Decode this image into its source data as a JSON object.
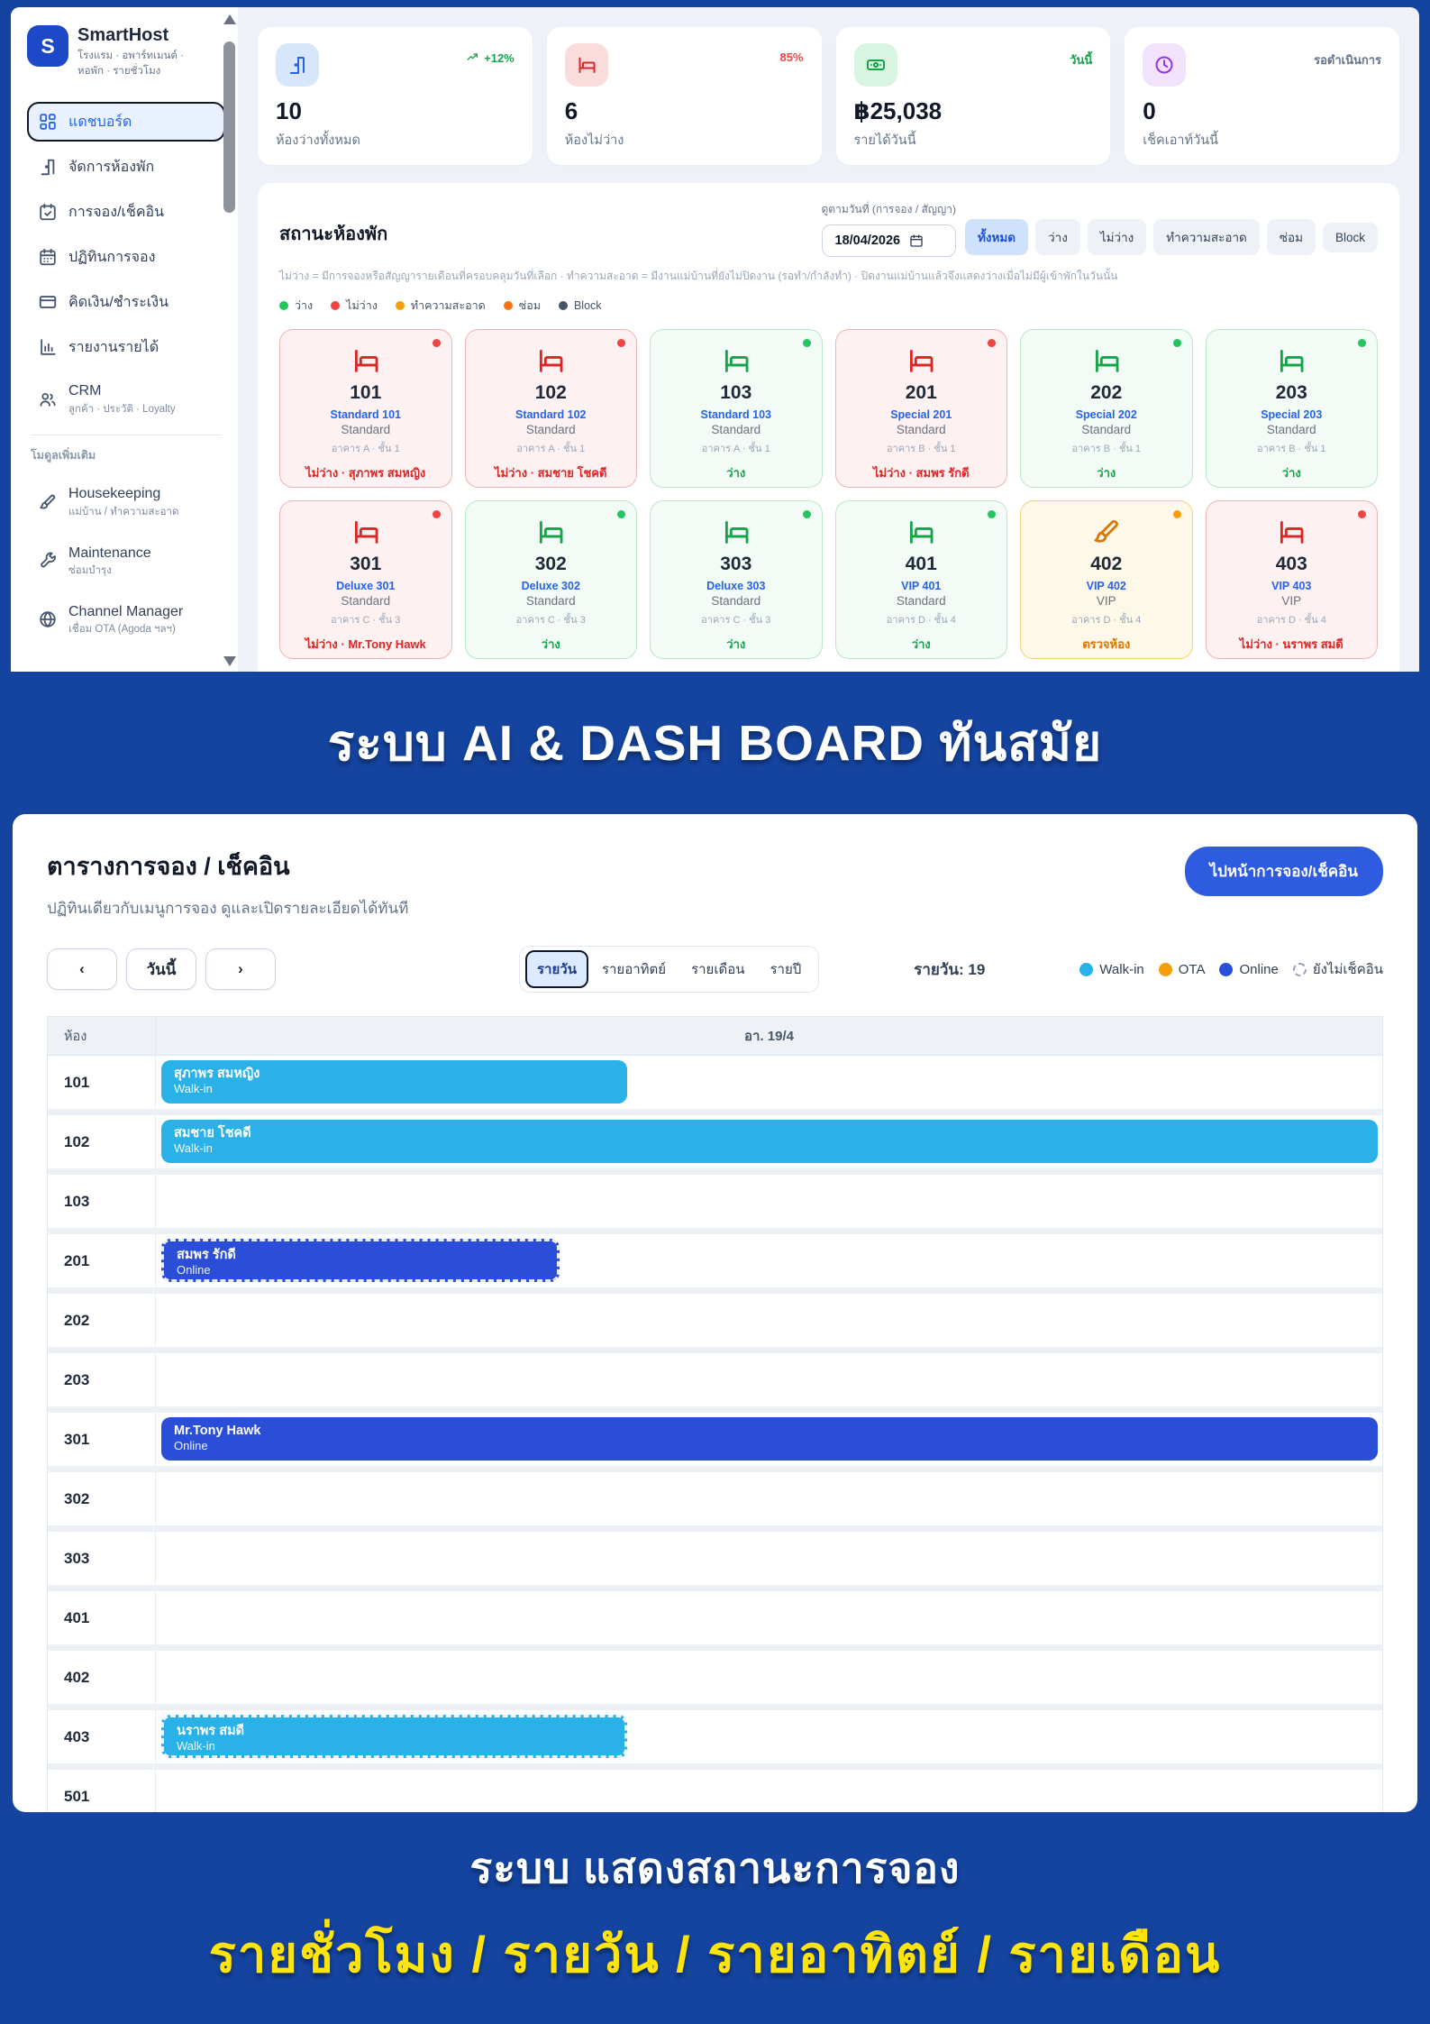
{
  "app": {
    "name": "SmartHost",
    "tagline": "โรงแรม · อพาร์ทเมนต์ · หอพัก · รายชั่วโมง",
    "logo_letter": "S"
  },
  "colors": {
    "frame_blue": "#14449F",
    "accent_blue": "#2563eb",
    "walkin": "#29b1e8",
    "ota": "#f59e0b",
    "online": "#2b4ed9",
    "free_green": "#22c55e",
    "occupied_red": "#ef4444",
    "cleaning_orange": "#f59e0b",
    "repair_orange": "#f97316",
    "block_slate": "#475569"
  },
  "sidebar": {
    "items": [
      {
        "label": "แดชบอร์ด",
        "icon": "dashboard",
        "active": true
      },
      {
        "label": "จัดการห้องพัก",
        "icon": "door"
      },
      {
        "label": "การจอง/เช็คอิน",
        "icon": "calendar-check"
      },
      {
        "label": "ปฏิทินการจอง",
        "icon": "calendar"
      },
      {
        "label": "คิดเงิน/ชำระเงิน",
        "icon": "credit-card"
      },
      {
        "label": "รายงานรายได้",
        "icon": "bar-chart"
      },
      {
        "label": "CRM",
        "sub": "ลูกค้า · ประวัติ · Loyalty",
        "icon": "users"
      }
    ],
    "section_label": "โมดูลเพิ่มเติม",
    "extra_items": [
      {
        "label": "Housekeeping",
        "sub": "แม่บ้าน / ทำความสะอาด",
        "icon": "brush"
      },
      {
        "label": "Maintenance",
        "sub": "ซ่อมบำรุง",
        "icon": "wrench"
      },
      {
        "label": "Channel Manager",
        "sub": "เชื่อม OTA (Agoda ฯลฯ)",
        "icon": "globe"
      }
    ]
  },
  "stats": [
    {
      "icon": "door",
      "icon_color": "#2563eb",
      "icon_bg": "#d8e6fb",
      "badge": "+12%",
      "badge_icon": "trend-up",
      "badge_color": "#16a34a",
      "value": "10",
      "label": "ห้องว่างทั้งหมด"
    },
    {
      "icon": "bed",
      "icon_color": "#dc2626",
      "icon_bg": "#fbdcdc",
      "badge": "85%",
      "badge_color": "#ef4444",
      "value": "6",
      "label": "ห้องไม่ว่าง"
    },
    {
      "icon": "banknote",
      "icon_color": "#16a34a",
      "icon_bg": "#d7f5e2",
      "badge": "วันนี้",
      "badge_color": "#16a34a",
      "value": "฿25,038",
      "label": "รายได้วันนี้"
    },
    {
      "icon": "clock",
      "icon_color": "#9333ea",
      "icon_bg": "#f1e3fc",
      "badge": "รอดำเนินการ",
      "badge_color": "#64748b",
      "value": "0",
      "label": "เช็คเอาท์วันนี้"
    }
  ],
  "room_status": {
    "title": "สถานะห้องพัก",
    "date_label": "ดูตามวันที่ (การจอง / สัญญา)",
    "date_value": "18/04/2026",
    "filters": [
      "ทั้งหมด",
      "ว่าง",
      "ไม่ว่าง",
      "ทำความสะอาด",
      "ซ่อม",
      "Block"
    ],
    "active_filter": "ทั้งหมด",
    "hint": "ไม่ว่าง = มีการจองหรือสัญญารายเดือนที่ครอบคลุมวันที่เลือก · ทำความสะอาด = มีงานแม่บ้านที่ยังไม่ปิดงาน (รอทำ/กำลังทำ) · ปิดงานแม่บ้านแล้วจึงแสดงว่างเมื่อไม่มีผู้เข้าพักในวันนั้น",
    "legend": [
      {
        "label": "ว่าง",
        "color": "#22c55e"
      },
      {
        "label": "ไม่ว่าง",
        "color": "#ef4444"
      },
      {
        "label": "ทำความสะอาด",
        "color": "#f59e0b"
      },
      {
        "label": "ซ่อม",
        "color": "#f97316"
      },
      {
        "label": "Block",
        "color": "#475569"
      }
    ],
    "rooms": [
      {
        "number": "101",
        "name": "Standard 101",
        "type": "Standard",
        "location": "อาคาร A · ชั้น 1",
        "status": "ไม่ว่าง · สุภาพร สมหญิง",
        "state": "occupied"
      },
      {
        "number": "102",
        "name": "Standard 102",
        "type": "Standard",
        "location": "อาคาร A · ชั้น 1",
        "status": "ไม่ว่าง · สมชาย โชคดี",
        "state": "occupied"
      },
      {
        "number": "103",
        "name": "Standard 103",
        "type": "Standard",
        "location": "อาคาร A · ชั้น 1",
        "status": "ว่าง",
        "state": "free"
      },
      {
        "number": "201",
        "name": "Special 201",
        "type": "Standard",
        "location": "อาคาร B · ชั้น 1",
        "status": "ไม่ว่าง · สมพร รักดี",
        "state": "occupied"
      },
      {
        "number": "202",
        "name": "Special 202",
        "type": "Standard",
        "location": "อาคาร B · ชั้น 1",
        "status": "ว่าง",
        "state": "free"
      },
      {
        "number": "203",
        "name": "Special 203",
        "type": "Standard",
        "location": "อาคาร B · ชั้น 1",
        "status": "ว่าง",
        "state": "free"
      },
      {
        "number": "301",
        "name": "Deluxe 301",
        "type": "Standard",
        "location": "อาคาร C · ชั้น 3",
        "status": "ไม่ว่าง · Mr.Tony Hawk",
        "state": "occupied"
      },
      {
        "number": "302",
        "name": "Deluxe 302",
        "type": "Standard",
        "location": "อาคาร C · ชั้น 3",
        "status": "ว่าง",
        "state": "free"
      },
      {
        "number": "303",
        "name": "Deluxe 303",
        "type": "Standard",
        "location": "อาคาร C · ชั้น 3",
        "status": "ว่าง",
        "state": "free"
      },
      {
        "number": "401",
        "name": "VIP 401",
        "type": "Standard",
        "location": "อาคาร D · ชั้น 4",
        "status": "ว่าง",
        "state": "free"
      },
      {
        "number": "402",
        "name": "VIP 402",
        "type": "VIP",
        "location": "อาคาร D · ชั้น 4",
        "status": "ตรวจห้อง",
        "state": "cleaning"
      },
      {
        "number": "403",
        "name": "VIP 403",
        "type": "VIP",
        "location": "อาคาร D · ชั้น 4",
        "status": "ไม่ว่าง · นราพร สมดี",
        "state": "occupied"
      }
    ]
  },
  "banner_top": {
    "text": "ระบบ AI & DASH BOARD ทันสมัย"
  },
  "booking": {
    "title": "ตารางการจอง / เช็คอิน",
    "subtitle": "ปฏิทินเดียวกับเมนูการจอง ดูและเปิดรายละเอียดได้ทันที",
    "goto_button": "ไปหน้าการจอง/เช็คอิน",
    "prev_label": "‹",
    "today_label": "วันนี้",
    "next_label": "›",
    "tabs": [
      "รายวัน",
      "รายอาทิตย์",
      "รายเดือน",
      "รายปี"
    ],
    "active_tab": "รายวัน",
    "count_label": "รายวัน: 19",
    "legend": [
      {
        "label": "Walk-in",
        "color": "#29b1e8"
      },
      {
        "label": "OTA",
        "color": "#f59e0b"
      },
      {
        "label": "Online",
        "color": "#2b4ed9"
      },
      {
        "label": "ยังไม่เช็คอิน",
        "dashed": true
      }
    ],
    "table": {
      "room_header": "ห้อง",
      "date_header": "อา. 19/4",
      "rows": [
        {
          "room": "101",
          "booking": {
            "guest": "สุภาพร สมหญิง",
            "channel": "Walk-in",
            "type": "walkin",
            "width_pct": 38,
            "dashed": false
          }
        },
        {
          "room": "102",
          "booking": {
            "guest": "สมชาย โชคดี",
            "channel": "Walk-in",
            "type": "walkin",
            "width_pct": 99.2,
            "dashed": false
          }
        },
        {
          "room": "103"
        },
        {
          "room": "201",
          "booking": {
            "guest": "สมพร รักดี",
            "channel": "Online",
            "type": "online",
            "width_pct": 32.5,
            "dashed": true
          }
        },
        {
          "room": "202"
        },
        {
          "room": "203"
        },
        {
          "room": "301",
          "booking": {
            "guest": "Mr.Tony Hawk",
            "channel": "Online",
            "type": "online",
            "width_pct": 99.2,
            "dashed": false
          }
        },
        {
          "room": "302"
        },
        {
          "room": "303"
        },
        {
          "room": "401"
        },
        {
          "room": "402"
        },
        {
          "room": "403",
          "booking": {
            "guest": "นราพร สมดี",
            "channel": "Walk-in",
            "type": "walkin",
            "width_pct": 38,
            "dashed": true
          }
        },
        {
          "room": "501"
        }
      ]
    }
  },
  "banner_bottom": {
    "line1": "ระบบ แสดงสถานะการจอง",
    "line2": "รายชั่วโมง / รายวัน / รายอาทิตย์ / รายเดือน"
  }
}
